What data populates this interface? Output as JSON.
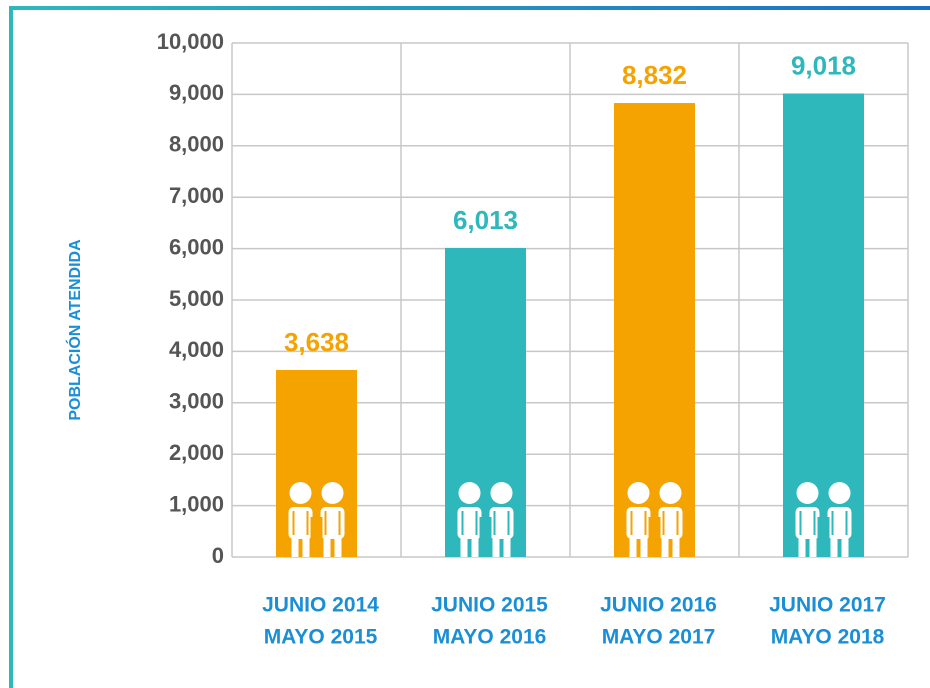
{
  "chart_data": {
    "type": "bar",
    "y_label": "POBLACIÓN ATENDIDA",
    "categories": [
      [
        "JUNIO 2014",
        "MAYO 2015"
      ],
      [
        "JUNIO 2015",
        "MAYO 2016"
      ],
      [
        "JUNIO 2016",
        "MAYO 2017"
      ],
      [
        "JUNIO 2017",
        "MAYO 2018"
      ]
    ],
    "values": [
      3638,
      6013,
      8832,
      9018
    ],
    "value_labels": [
      "3,638",
      "6,013",
      "8,832",
      "9,018"
    ],
    "colors": [
      "#f5a300",
      "#2eb8bb",
      "#f5a300",
      "#2eb8bb"
    ],
    "ylim": [
      0,
      10000
    ],
    "yticks": [
      0,
      {
        "value": 1000,
        "label": "1,000"
      },
      {
        "value": 2000,
        "label": "2,000"
      },
      {
        "value": 3000,
        "label": "3,000"
      },
      {
        "value": 4000,
        "label": "4,000"
      },
      {
        "value": 5000,
        "label": "5,000"
      },
      {
        "value": 6000,
        "label": "6,000"
      },
      {
        "value": 7000,
        "label": "7,000"
      },
      {
        "value": 8000,
        "label": "8,000"
      },
      {
        "value": 9000,
        "label": "9,000"
      },
      {
        "value": 10000,
        "label": "10,000"
      }
    ],
    "grid": true
  }
}
